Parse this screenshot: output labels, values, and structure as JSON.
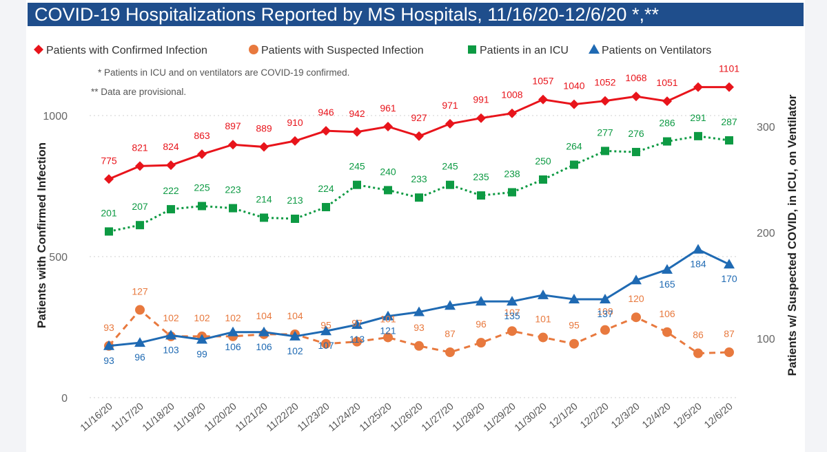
{
  "title": "COVID-19 Hospitalizations Reported by MS Hospitals, 11/16/20-12/6/20 *,**",
  "notes": [
    "* Patients in ICU and on ventilators are COVID-19 confirmed.",
    "** Data are provisional."
  ],
  "chart_data": {
    "type": "line",
    "x": [
      "11/16/20",
      "11/17/20",
      "11/18/20",
      "11/19/20",
      "11/20/20",
      "11/21/20",
      "11/22/20",
      "11/23/20",
      "11/24/20",
      "11/25/20",
      "11/26/20",
      "11/27/20",
      "11/28/20",
      "11/29/20",
      "11/30/20",
      "12/1/20",
      "12/2/20",
      "12/3/20",
      "12/4/20",
      "12/5/20",
      "12/6/20"
    ],
    "ylabel": "Patients with Confirmed Infection",
    "y2label": "Patients w/ Suspected COVID, in ICU, on Ventilator",
    "ylim": [
      0,
      1100
    ],
    "y2lim": [
      40,
      340
    ],
    "yticks": [
      0,
      500,
      1000
    ],
    "y2ticks": [
      100,
      200,
      300
    ],
    "grid": true,
    "legend_position": "top",
    "series": [
      {
        "name": "Patients with Confirmed Infection",
        "axis": "left",
        "marker": "diamond",
        "color": "#e8141b",
        "dashed": false,
        "values": [
          775,
          821,
          824,
          863,
          897,
          889,
          910,
          946,
          942,
          961,
          927,
          971,
          991,
          1008,
          1057,
          1040,
          1052,
          1068,
          1051,
          1101,
          1101
        ]
      },
      {
        "name": "Patients with Suspected Infection",
        "axis": "right",
        "marker": "circle",
        "color": "#e8793e",
        "dashed": true,
        "values": [
          93,
          127,
          102,
          102,
          102,
          104,
          104,
          95,
          97,
          101,
          93,
          87,
          96,
          107,
          101,
          95,
          108,
          120,
          106,
          86,
          87
        ]
      },
      {
        "name": "Patients in an ICU",
        "axis": "right",
        "marker": "square",
        "color": "#0d9a43",
        "dashed": true,
        "values": [
          201,
          207,
          222,
          225,
          223,
          214,
          213,
          224,
          245,
          240,
          233,
          245,
          235,
          238,
          250,
          264,
          277,
          276,
          286,
          291,
          287
        ]
      },
      {
        "name": "Patients on Ventilators",
        "axis": "right",
        "marker": "triangle",
        "color": "#1f6ab3",
        "dashed": false,
        "values": [
          93,
          96,
          103,
          99,
          106,
          106,
          102,
          107,
          113,
          121,
          125,
          131,
          135,
          135,
          141,
          137,
          137,
          155,
          165,
          184,
          170
        ]
      }
    ],
    "point_labels": {
      "Patients with Confirmed Infection": [
        "775",
        "821",
        "824",
        "863",
        "897",
        "889",
        "910",
        "946",
        "942",
        "961",
        "927",
        "971",
        "991",
        "1008",
        "1057",
        "1040",
        "1052",
        "1068",
        "1051",
        "",
        "1101"
      ],
      "Patients with Suspected Infection": [
        "93",
        "127",
        "102",
        "102",
        "102",
        "104",
        "104",
        "95",
        "97",
        "101",
        "93",
        "87",
        "96",
        "107",
        "101",
        "95",
        "108",
        "120",
        "106",
        "86",
        "87"
      ],
      "Patients in an ICU": [
        "201",
        "207",
        "222",
        "225",
        "223",
        "214",
        "213",
        "224",
        "245",
        "240",
        "233",
        "245",
        "235",
        "238",
        "250",
        "264",
        "277",
        "276",
        "286",
        "291",
        "287"
      ],
      "Patients on Ventilators": [
        "93",
        "96",
        "103",
        "99",
        "106",
        "106",
        "102",
        "107",
        "113",
        "121",
        "",
        "",
        "",
        "135",
        "",
        "",
        "137",
        "",
        "165",
        "184",
        "170"
      ]
    }
  }
}
